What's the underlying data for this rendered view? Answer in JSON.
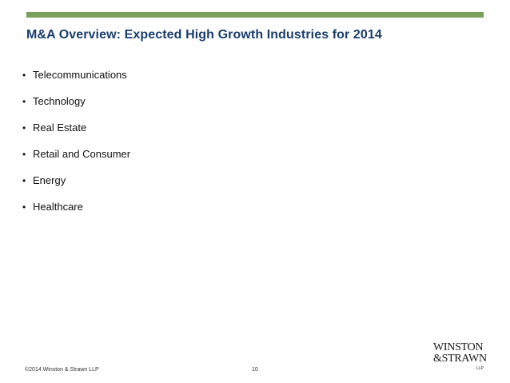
{
  "slide": {
    "title": "M&A Overview:  Expected High Growth Industries for 2014",
    "bullet_symbol": "•",
    "bullets": [
      "Telecommunications",
      "Technology",
      "Real Estate",
      "Retail and Consumer",
      "Energy",
      "Healthcare"
    ]
  },
  "footer": {
    "copyright": "©2014 Winston & Strawn LLP",
    "page_number": "10"
  },
  "logo": {
    "line1": "WINSTON",
    "line2": "&STRAWN",
    "suffix": "LLP"
  },
  "colors": {
    "accent_bar": "#77a15b",
    "title": "#1a3d6e"
  }
}
